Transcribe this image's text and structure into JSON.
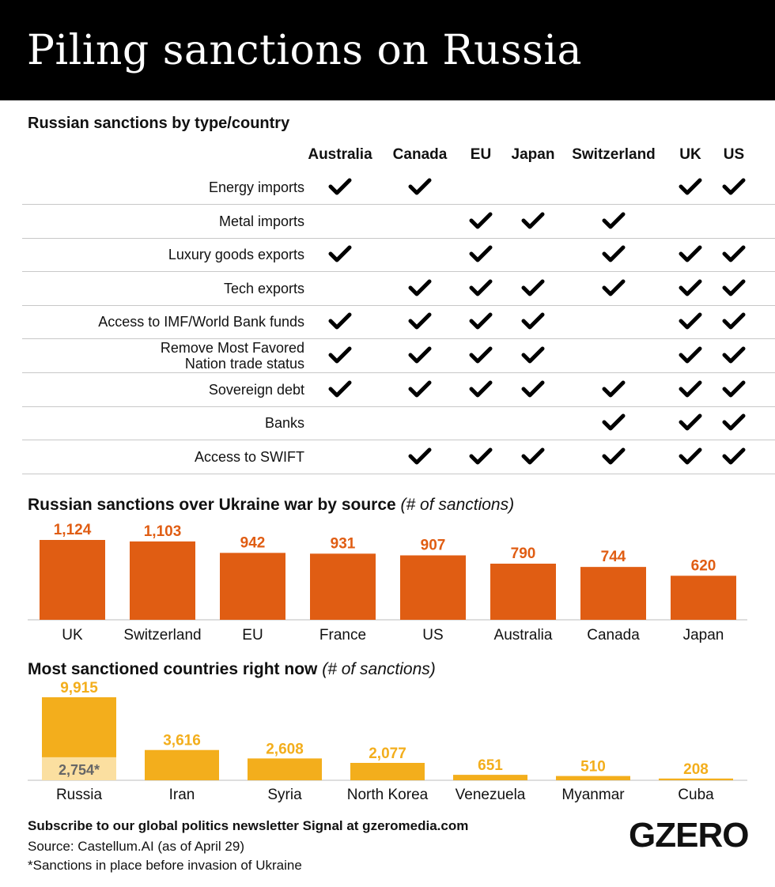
{
  "title": "Piling sanctions on Russia",
  "sections": {
    "s1": "Russian sanctions by type/country",
    "s2": "Russian sanctions over Ukraine war by source",
    "s2_sub": "(# of sanctions)",
    "s3": "Most sanctioned countries right now",
    "s3_sub": "(# of sanctions)"
  },
  "icons": {
    "check": "check-icon"
  },
  "colors": {
    "orange": "#e05d13",
    "yellow": "#f3ae1c",
    "light_yellow": "#fbdfa0"
  },
  "chart_data": [
    {
      "type": "table",
      "title": "Russian sanctions by type/country",
      "columns": [
        "Australia",
        "Canada",
        "EU",
        "Japan",
        "Switzerland",
        "UK",
        "US"
      ],
      "rows": [
        {
          "label": "Energy imports",
          "checks": [
            true,
            true,
            false,
            false,
            false,
            true,
            true
          ]
        },
        {
          "label": "Metal imports",
          "checks": [
            false,
            false,
            true,
            true,
            true,
            false,
            false
          ]
        },
        {
          "label": "Luxury goods exports",
          "checks": [
            true,
            false,
            true,
            false,
            true,
            true,
            true
          ]
        },
        {
          "label": "Tech exports",
          "checks": [
            false,
            true,
            true,
            true,
            true,
            true,
            true
          ]
        },
        {
          "label": "Access to IMF/World Bank funds",
          "checks": [
            true,
            true,
            true,
            true,
            false,
            true,
            true
          ]
        },
        {
          "label": "Remove Most Favored Nation trade status",
          "checks": [
            true,
            true,
            true,
            true,
            false,
            true,
            true
          ]
        },
        {
          "label": "Sovereign debt",
          "checks": [
            true,
            true,
            true,
            true,
            true,
            true,
            true
          ]
        },
        {
          "label": "Banks",
          "checks": [
            false,
            false,
            false,
            false,
            true,
            true,
            true
          ]
        },
        {
          "label": "Access to SWIFT",
          "checks": [
            false,
            true,
            true,
            true,
            true,
            true,
            true
          ]
        }
      ]
    },
    {
      "type": "bar",
      "title": "Russian sanctions over Ukraine war by source",
      "subtitle": "(# of sanctions)",
      "categories": [
        "UK",
        "Switzerland",
        "EU",
        "France",
        "US",
        "Australia",
        "Canada",
        "Japan"
      ],
      "values": [
        1124,
        1103,
        942,
        931,
        907,
        790,
        744,
        620
      ],
      "labels": [
        "1,124",
        "1,103",
        "942",
        "931",
        "907",
        "790",
        "744",
        "620"
      ],
      "color": "#e05d13"
    },
    {
      "type": "bar",
      "title": "Most sanctioned countries right now",
      "subtitle": "(# of sanctions)",
      "categories": [
        "Russia",
        "Iran",
        "Syria",
        "North Korea",
        "Venezuela",
        "Myanmar",
        "Cuba"
      ],
      "values": [
        9915,
        3616,
        2608,
        2077,
        651,
        510,
        208
      ],
      "labels": [
        "9,915",
        "3,616",
        "2,608",
        "2,077",
        "651",
        "510",
        "208"
      ],
      "pre_invasion": {
        "category": "Russia",
        "value": 2754,
        "label": "2,754*"
      },
      "color": "#f3ae1c",
      "pre_color": "#fbdfa0"
    }
  ],
  "footer": {
    "subscribe": "Subscribe to our global politics newsletter Signal at gzeromedia.com",
    "source": "Source: Castellum.AI (as of April 29)",
    "note": "*Sanctions in place before invasion of Ukraine"
  },
  "logo": "GZERO"
}
